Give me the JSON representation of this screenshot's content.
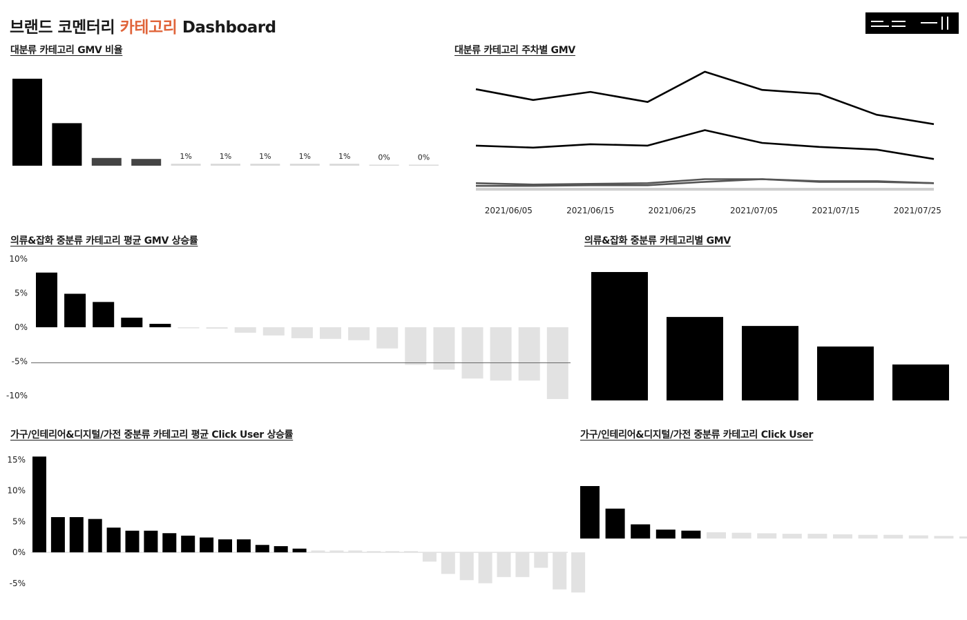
{
  "dashboard": {
    "title_part1": "브랜드 코멘터리",
    "title_accent": "카테고리",
    "title_part2": "Dashboard",
    "accent_color": "#e0643a"
  },
  "panels": {
    "p1_title": "대분류 카테고리 GMV 비율",
    "p2_title": "대분류 카테고리 주차별 GMV",
    "p3_title": "의류&잡화 중분류 카테고리 평균 GMV 상승률",
    "p4_title": "의류&잡화 중분류 카테고리별 GMV",
    "p5_title": "가구/인테리어&디지털/가전 중분류 카테고리 평균 Click User 상승률",
    "p6_title": "가구/인테리어&디지털/가전 중분류 카테고리 Click User"
  },
  "chart_data": [
    {
      "id": "gmv_share",
      "type": "bar",
      "title": "대분류 카테고리 GMV 비율",
      "values": [
        45,
        22,
        4,
        3.5,
        1,
        1,
        1,
        1,
        1,
        0.4,
        0.3
      ],
      "data_labels": [
        "",
        "",
        "",
        "",
        "1%",
        "1%",
        "1%",
        "1%",
        "1%",
        "0%",
        "0%"
      ],
      "colors": [
        "#000000",
        "#000000",
        "#444444",
        "#444444",
        "#d9d9d9",
        "#d9d9d9",
        "#d9d9d9",
        "#d9d9d9",
        "#d9d9d9",
        "#d9d9d9",
        "#d9d9d9"
      ]
    },
    {
      "id": "weekly_gmv",
      "type": "line",
      "title": "대분류 카테고리 주차별 GMV",
      "x": [
        "2021/06/01",
        "2021/06/08",
        "2021/06/15",
        "2021/06/22",
        "2021/06/29",
        "2021/07/06",
        "2021/07/13",
        "2021/07/20",
        "2021/07/27"
      ],
      "x_ticks": [
        "2021/06/05",
        "2021/06/15",
        "2021/06/25",
        "2021/07/05",
        "2021/07/15",
        "2021/07/25"
      ],
      "series": [
        {
          "values": [
            152,
            136,
            148,
            133,
            178,
            151,
            145,
            114,
            100
          ],
          "color": "#000000"
        },
        {
          "values": [
            68,
            65,
            70,
            68,
            91,
            72,
            66,
            62,
            48
          ],
          "color": "#000000"
        },
        {
          "values": [
            12,
            10,
            11,
            12,
            18,
            18,
            15,
            15,
            12
          ],
          "color": "#555555"
        },
        {
          "values": [
            8,
            8,
            9,
            9,
            14,
            18,
            14,
            14,
            12
          ],
          "color": "#555555"
        },
        {
          "values": [
            3,
            3,
            3,
            3,
            3,
            3,
            3,
            3,
            3
          ],
          "color": "#cccccc"
        }
      ]
    },
    {
      "id": "apparel_gmv_growth",
      "type": "bar",
      "title": "의류&잡화 중분류 카테고리 평균 GMV 상승률",
      "y_ticks": [
        "10%",
        "5%",
        "0%",
        "-5%",
        "-10%"
      ],
      "ylim": [
        -10,
        10
      ],
      "values": [
        8,
        4.9,
        3.7,
        1.4,
        0.5,
        -0.1,
        -0.2,
        -0.8,
        -1.2,
        -1.6,
        -1.7,
        -1.9,
        -3.1,
        -5.5,
        -6.2,
        -7.5,
        -7.8,
        -7.8,
        -10.5
      ],
      "colors": [
        "#000000",
        "#000000",
        "#000000",
        "#000000",
        "#000000",
        "#e2e2e2",
        "#e2e2e2",
        "#e2e2e2",
        "#e2e2e2",
        "#e2e2e2",
        "#e2e2e2",
        "#e2e2e2",
        "#e2e2e2",
        "#e2e2e2",
        "#e2e2e2",
        "#e2e2e2",
        "#e2e2e2",
        "#e2e2e2",
        "#e2e2e2"
      ],
      "reference_line": -5.2
    },
    {
      "id": "apparel_gmv",
      "type": "bar",
      "title": "의류&잡화 중분류 카테고리별 GMV",
      "values": [
        100,
        65,
        58,
        42,
        28
      ]
    },
    {
      "id": "furniture_click_growth",
      "type": "bar",
      "title": "가구/인테리어&디지털/가전 중분류 카테고리 평균 Click User 상승률",
      "y_ticks": [
        "15%",
        "10%",
        "5%",
        "0%",
        "-5%"
      ],
      "ylim": [
        -5,
        15
      ],
      "values": [
        15.5,
        5.7,
        5.7,
        5.4,
        4,
        3.5,
        3.5,
        3.1,
        2.7,
        2.4,
        2.1,
        2.1,
        1.2,
        1,
        0.6,
        0.3,
        0.3,
        0.3,
        0.2,
        0.2,
        0.2,
        -1.5,
        -3.5,
        -4.5,
        -5,
        -4,
        -4,
        -2.5,
        -6,
        -6.5
      ],
      "colors": [
        "#000000",
        "#000000",
        "#000000",
        "#000000",
        "#000000",
        "#000000",
        "#000000",
        "#000000",
        "#000000",
        "#000000",
        "#000000",
        "#000000",
        "#000000",
        "#000000",
        "#000000",
        "#e2e2e2",
        "#e2e2e2",
        "#e2e2e2",
        "#e2e2e2",
        "#e2e2e2",
        "#e2e2e2",
        "#e2e2e2",
        "#e2e2e2",
        "#e2e2e2",
        "#e2e2e2",
        "#e2e2e2",
        "#e2e2e2",
        "#e2e2e2",
        "#e2e2e2",
        "#e2e2e2"
      ]
    },
    {
      "id": "furniture_click_users",
      "type": "bar",
      "title": "가가구/인테리어&디지털/가전 중분류 카테고리 Click User",
      "values": [
        100,
        57,
        27,
        17,
        15,
        12,
        11,
        10,
        9,
        9,
        8,
        7,
        7,
        6,
        5,
        4,
        3
      ],
      "colors": [
        "#000000",
        "#000000",
        "#000000",
        "#000000",
        "#000000",
        "#e2e2e2",
        "#e2e2e2",
        "#e2e2e2",
        "#e2e2e2",
        "#e2e2e2",
        "#e2e2e2",
        "#e2e2e2",
        "#e2e2e2",
        "#e2e2e2",
        "#e2e2e2",
        "#e2e2e2",
        "#e2e2e2"
      ]
    }
  ]
}
